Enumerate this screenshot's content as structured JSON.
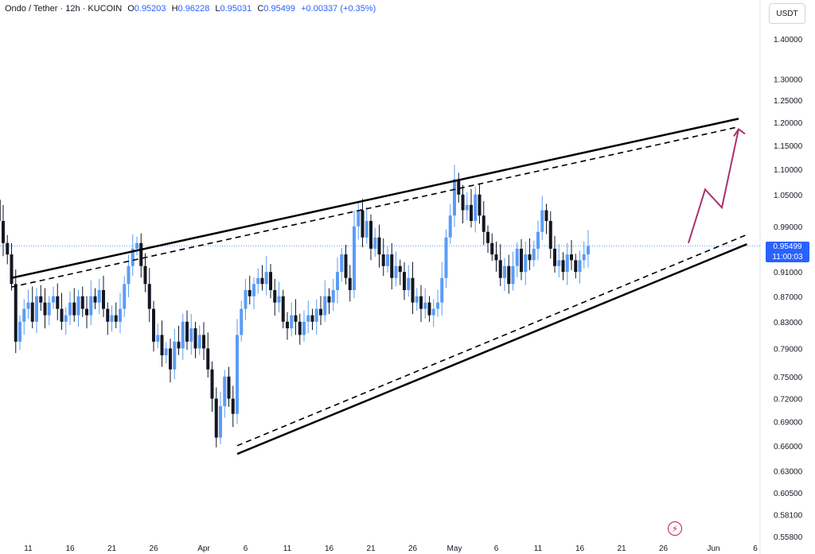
{
  "header": {
    "title": "Ondo / Tether · 12h · KUCOIN",
    "o_label": "O",
    "o_value": "0.95203",
    "h_label": "H",
    "h_value": "0.96228",
    "l_label": "L",
    "l_value": "0.95031",
    "c_label": "C",
    "c_value": "0.95499",
    "change": "+0.00337 (+0.35%)"
  },
  "currency": "USDT",
  "price_tag": {
    "price": "0.95499",
    "countdown": "11:00:03"
  },
  "icons": {
    "flash": "flash-icon"
  },
  "colors": {
    "bullish": "#5b9cf5",
    "bearish": "#131722",
    "trendline": "#000000",
    "projection": "#a8326e",
    "accent": "#2962ff"
  },
  "chart_data": {
    "type": "candlestick",
    "symbol": "Ondo / Tether",
    "interval": "12h",
    "exchange": "KUCOIN",
    "y_scale": "log",
    "ylim": [
      0.55,
      1.45
    ],
    "y_ticks": [
      1.4,
      1.3,
      1.25,
      1.2,
      1.15,
      1.1,
      1.05,
      0.99,
      0.95,
      0.91,
      0.87,
      0.83,
      0.79,
      0.75,
      0.72,
      0.69,
      0.66,
      0.63,
      0.605,
      0.581,
      0.558
    ],
    "y_tick_labels": [
      "1.40000",
      "1.30000",
      "1.25000",
      "1.20000",
      "1.15000",
      "1.10000",
      "1.05000",
      "0.99000",
      "",
      "0.91000",
      "0.87000",
      "0.83000",
      "0.79000",
      "0.75000",
      "0.72000",
      "0.69000",
      "0.66000",
      "0.63000",
      "0.60500",
      "0.58100",
      "0.55800"
    ],
    "x_ticks": [
      {
        "date": "2024-03-11",
        "label": "11"
      },
      {
        "date": "2024-03-16",
        "label": "16"
      },
      {
        "date": "2024-03-21",
        "label": "21"
      },
      {
        "date": "2024-03-26",
        "label": "26"
      },
      {
        "date": "2024-04-01",
        "label": "Apr"
      },
      {
        "date": "2024-04-06",
        "label": "6"
      },
      {
        "date": "2024-04-11",
        "label": "11"
      },
      {
        "date": "2024-04-16",
        "label": "16"
      },
      {
        "date": "2024-04-21",
        "label": "21"
      },
      {
        "date": "2024-04-26",
        "label": "26"
      },
      {
        "date": "2024-05-01",
        "label": "May"
      },
      {
        "date": "2024-05-06",
        "label": "6"
      },
      {
        "date": "2024-05-11",
        "label": "11"
      },
      {
        "date": "2024-05-16",
        "label": "16"
      },
      {
        "date": "2024-05-21",
        "label": "21"
      },
      {
        "date": "2024-05-26",
        "label": "26"
      },
      {
        "date": "2024-06-01",
        "label": "Jun"
      },
      {
        "date": "2024-06-06",
        "label": "6"
      }
    ],
    "x_range": [
      "2024-03-06",
      "2024-06-09"
    ],
    "last_price": 0.95499,
    "closes": [
      1.17,
      1.04,
      1.0,
      0.96,
      0.94,
      0.89,
      0.8,
      0.83,
      0.85,
      0.86,
      0.83,
      0.87,
      0.86,
      0.84,
      0.86,
      0.87,
      0.85,
      0.83,
      0.84,
      0.86,
      0.84,
      0.87,
      0.85,
      0.84,
      0.87,
      0.86,
      0.88,
      0.85,
      0.83,
      0.84,
      0.83,
      0.85,
      0.89,
      0.92,
      0.95,
      0.96,
      0.92,
      0.89,
      0.85,
      0.8,
      0.81,
      0.78,
      0.79,
      0.76,
      0.8,
      0.79,
      0.83,
      0.8,
      0.82,
      0.79,
      0.81,
      0.79,
      0.76,
      0.72,
      0.67,
      0.71,
      0.75,
      0.72,
      0.7,
      0.81,
      0.85,
      0.88,
      0.87,
      0.89,
      0.9,
      0.89,
      0.91,
      0.88,
      0.86,
      0.87,
      0.83,
      0.82,
      0.84,
      0.83,
      0.81,
      0.83,
      0.84,
      0.83,
      0.85,
      0.84,
      0.87,
      0.86,
      0.88,
      0.91,
      0.94,
      0.9,
      0.88,
      0.99,
      1.02,
      0.97,
      1.0,
      0.95,
      0.97,
      0.94,
      0.92,
      0.94,
      0.9,
      0.92,
      0.91,
      0.88,
      0.9,
      0.86,
      0.87,
      0.85,
      0.86,
      0.84,
      0.85,
      0.86,
      0.9,
      0.97,
      1.01,
      1.08,
      1.05,
      1.02,
      1.03,
      1.0,
      1.05,
      1.01,
      0.98,
      0.96,
      0.94,
      0.93,
      0.9,
      0.92,
      0.89,
      0.92,
      0.95,
      0.91,
      0.94,
      0.93,
      0.95,
      0.98,
      1.02,
      1.0,
      0.95,
      0.92,
      0.93,
      0.91,
      0.94,
      0.93,
      0.91,
      0.93,
      0.94,
      0.955
    ],
    "trendlines": [
      {
        "style": "solid",
        "from": {
          "date": "2024-03-09",
          "price": 0.9
        },
        "to": {
          "date": "2024-06-04",
          "price": 1.208
        }
      },
      {
        "style": "dashed",
        "from": {
          "date": "2024-03-09",
          "price": 0.885
        },
        "to": {
          "date": "2024-06-04",
          "price": 1.19
        }
      },
      {
        "style": "solid",
        "from": {
          "date": "2024-04-05",
          "price": 0.65
        },
        "to": {
          "date": "2024-06-05",
          "price": 0.958
        }
      },
      {
        "style": "dashed",
        "from": {
          "date": "2024-04-05",
          "price": 0.66
        },
        "to": {
          "date": "2024-06-05",
          "price": 0.975
        }
      }
    ],
    "projection": [
      {
        "date": "2024-05-29",
        "price": 0.96
      },
      {
        "date": "2024-05-31",
        "price": 1.06
      },
      {
        "date": "2024-06-02",
        "price": 1.025
      },
      {
        "date": "2024-06-04",
        "price": 1.185
      }
    ]
  }
}
